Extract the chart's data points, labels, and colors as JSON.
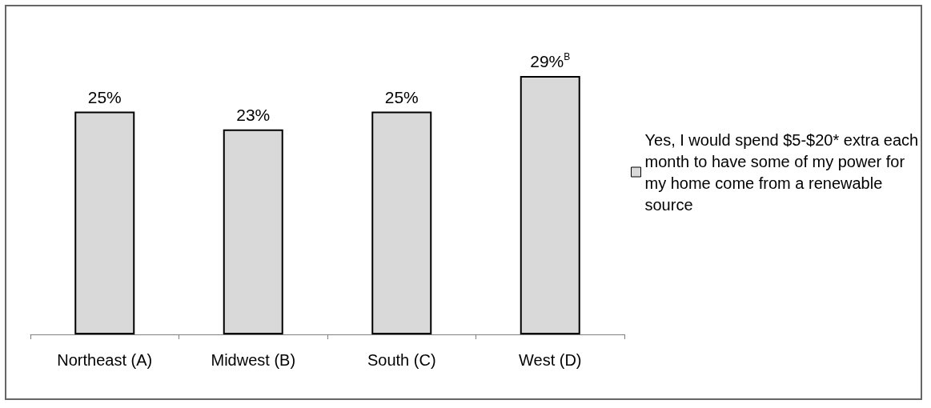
{
  "chart_data": {
    "type": "bar",
    "categories": [
      "Northeast (A)",
      "Midwest (B)",
      "South (C)",
      "West (D)"
    ],
    "series": [
      {
        "name": "Yes, I would spend $5-$20* extra each month to have some of my power for my home come from a renewable source",
        "color": "#d9d9d9",
        "values": [
          25,
          23,
          25,
          29
        ],
        "value_labels": [
          "25%",
          "23%",
          "25%",
          "29%$^{B}$"
        ]
      }
    ],
    "legend": "right",
    "grid": false
  }
}
